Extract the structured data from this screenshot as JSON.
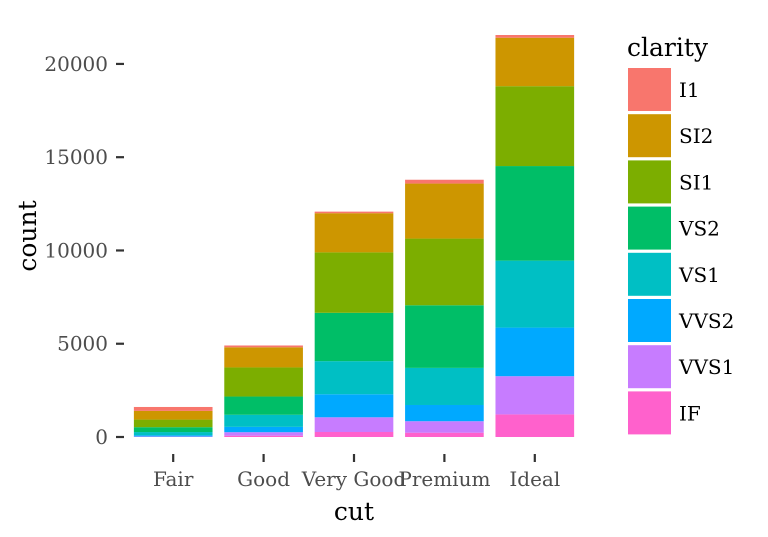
{
  "chart_data": {
    "type": "bar",
    "stacked": true,
    "xlabel": "cut",
    "ylabel": "count",
    "ylim": [
      0,
      21551
    ],
    "yticks": [
      0,
      5000,
      10000,
      15000,
      20000
    ],
    "categories": [
      "Fair",
      "Good",
      "Very Good",
      "Premium",
      "Ideal"
    ],
    "legend": {
      "title": "clarity",
      "position": "right"
    },
    "grid": false,
    "series": [
      {
        "name": "I1",
        "color": "#F8766D",
        "values": [
          210,
          96,
          84,
          205,
          146
        ]
      },
      {
        "name": "SI2",
        "color": "#CD9600",
        "values": [
          466,
          1081,
          2100,
          2949,
          2598
        ]
      },
      {
        "name": "SI1",
        "color": "#7CAE00",
        "values": [
          408,
          1560,
          3240,
          3575,
          4282
        ]
      },
      {
        "name": "VS2",
        "color": "#00BE67",
        "values": [
          261,
          978,
          2591,
          3357,
          5071
        ]
      },
      {
        "name": "VS1",
        "color": "#00BFC4",
        "values": [
          170,
          648,
          1775,
          1989,
          3589
        ]
      },
      {
        "name": "VVS2",
        "color": "#00A9FF",
        "values": [
          69,
          286,
          1235,
          870,
          2606
        ]
      },
      {
        "name": "VVS1",
        "color": "#C77CFF",
        "values": [
          17,
          186,
          789,
          616,
          2047
        ]
      },
      {
        "name": "IF",
        "color": "#FF61CC",
        "values": [
          9,
          71,
          268,
          230,
          1212
        ]
      }
    ]
  }
}
